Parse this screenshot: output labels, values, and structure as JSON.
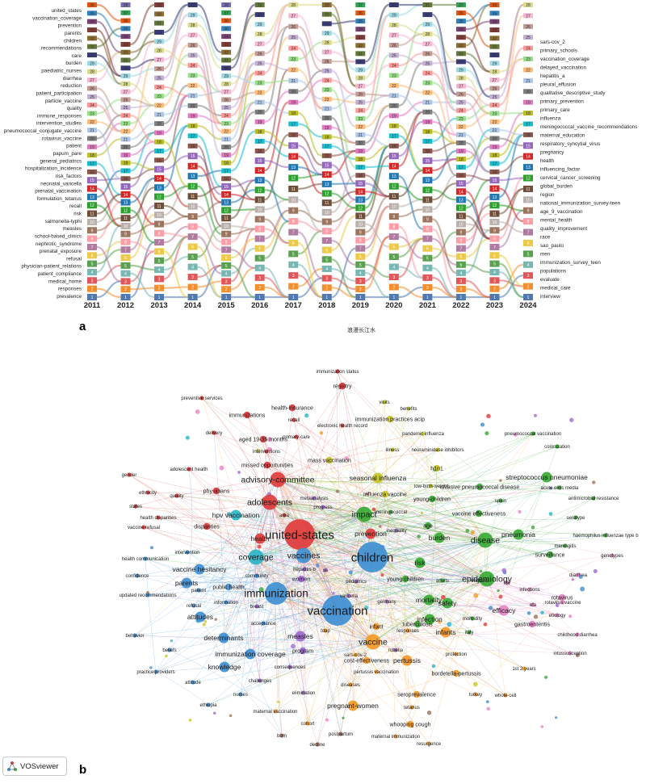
{
  "panel_a": {
    "letter": "a",
    "watermark": "浪漫长江水",
    "years": [
      "2011",
      "2012",
      "2013",
      "2014",
      "2015",
      "2016",
      "2017",
      "2018",
      "2019",
      "2020",
      "2021",
      "2022",
      "2023",
      "2024"
    ],
    "left_terms": [
      "united_states",
      "vaccination_coverage",
      "prevention",
      "parents",
      "children",
      "recommendations",
      "care",
      "burden",
      "paediatric_nurses",
      "diarrhea",
      "reduction",
      "patient_participation",
      "particle_vaccine",
      "quality",
      "immune_responses",
      "intervention_studies",
      "pneumococcal_conjugate_vaccine",
      "rotavirus_vaccine",
      "patient",
      "papum_pare",
      "general_pediatrics",
      "hospitalization_incidence",
      "risk_factors",
      "neonatal_varicella",
      "prenatal_vaccination",
      "formulation_tetanus",
      "recall",
      "risk",
      "salmonella-typhi",
      "measles",
      "school-based_clinics",
      "nephrotic_syndrome",
      "prenatal_exposure",
      "refusal",
      "physician-patient_relations",
      "patient_compliance",
      "medical_home",
      "responses",
      "prevalence"
    ],
    "right_terms": [
      "sars-cov_2",
      "primary_schools",
      "vaccination_coverage",
      "delayed_vaccination",
      "hepatitis_a",
      "pleural_effusion",
      "qualitative_descriptive_study",
      "primary_prevention",
      "primary_care",
      "influenza",
      "meningococcal_vaccine_recommendations",
      "maternal_education",
      "respiratory_syncytial_virus",
      "pregnancy",
      "health",
      "influencing_factor",
      "cervical_cancer_screening",
      "global_burden",
      "region",
      "national_immunization_survey-teen",
      "age_9_vaccination",
      "mental_health",
      "quality_improvement",
      "race",
      "sao_paulo",
      "men",
      "immunization_survey_teen",
      "populations",
      "evaluate",
      "medical_care",
      "interview"
    ],
    "rank_max_by_year": [
      36,
      38,
      33,
      30,
      38,
      31,
      28,
      32,
      37,
      30,
      31,
      37,
      36,
      28
    ],
    "rank_palette": [
      "#4f79b0",
      "#f28e2b",
      "#e15759",
      "#76b7b2",
      "#59a14f",
      "#edc948",
      "#b07aa1",
      "#ff9da7",
      "#9c755f",
      "#bab0ac",
      "#6f4e37",
      "#2ca02c",
      "#1f77b4",
      "#d62728",
      "#9467bd",
      "#8c564b",
      "#17becf",
      "#bcbd22",
      "#e377c2",
      "#7f7f7f",
      "#aec7e8",
      "#ffbb78",
      "#98df8a",
      "#ff9896",
      "#c5b0d5",
      "#c49c94",
      "#f7b6d2",
      "#dbdb8d",
      "#9edae5",
      "#393b79",
      "#637939",
      "#8c6d31",
      "#843c39",
      "#7b4173",
      "#3182bd",
      "#e6550d",
      "#31a354",
      "#756bb1"
    ]
  },
  "panel_b": {
    "letter": "b",
    "logo_text": "VOSviewer",
    "clusters": {
      "red": "#e03c3c",
      "green": "#3aaa35",
      "blue": "#3f8fd2",
      "yellow": "#c8c828",
      "purple": "#a26bd1",
      "cyan": "#2bb5c7",
      "orange": "#f39a28",
      "pink": "#e884c4",
      "brown": "#a0705a"
    },
    "nodes": [
      {
        "label": "immunization status",
        "c": "red",
        "w": 1
      },
      {
        "label": "registry",
        "c": "red",
        "w": 2
      },
      {
        "label": "visits",
        "c": "yellow",
        "w": 1
      },
      {
        "label": "benefits",
        "c": "yellow",
        "w": 1
      },
      {
        "label": "preventive services",
        "c": "red",
        "w": 1
      },
      {
        "label": "health-insurance",
        "c": "red",
        "w": 2
      },
      {
        "label": "immunization practices acip",
        "c": "yellow",
        "w": 2
      },
      {
        "label": "immunizations",
        "c": "red",
        "w": 2
      },
      {
        "label": "recall",
        "c": "red",
        "w": 1
      },
      {
        "label": "electronic health record",
        "c": "red",
        "w": 1
      },
      {
        "label": "delivery",
        "c": "red",
        "w": 1
      },
      {
        "label": "pandemic influenza",
        "c": "yellow",
        "w": 1
      },
      {
        "label": "pneumococcal vaccination",
        "c": "green",
        "w": 1
      },
      {
        "label": "aged 19-35 months",
        "c": "red",
        "w": 2
      },
      {
        "label": "primary-care",
        "c": "red",
        "w": 1
      },
      {
        "label": "illness",
        "c": "yellow",
        "w": 1
      },
      {
        "label": "neuraminidase inhibitors",
        "c": "yellow",
        "w": 1
      },
      {
        "label": "colonization",
        "c": "green",
        "w": 1
      },
      {
        "label": "interventions",
        "c": "red",
        "w": 1
      },
      {
        "label": "adolescent health",
        "c": "red",
        "w": 1
      },
      {
        "label": "missed opportunities",
        "c": "red",
        "w": 2
      },
      {
        "label": "gender",
        "c": "red",
        "w": 1
      },
      {
        "label": "mass vaccination",
        "c": "yellow",
        "w": 2
      },
      {
        "label": "h1n1",
        "c": "yellow",
        "w": 2
      },
      {
        "label": "streptococcus pneumoniae",
        "c": "green",
        "w": 3
      },
      {
        "label": "ethnicity",
        "c": "red",
        "w": 1
      },
      {
        "label": "quality",
        "c": "red",
        "w": 1
      },
      {
        "label": "physicians",
        "c": "red",
        "w": 2
      },
      {
        "label": "advisory-committee",
        "c": "red",
        "w": 4
      },
      {
        "label": "seasonal influenza",
        "c": "yellow",
        "w": 3
      },
      {
        "label": "invasive pneumococcal disease",
        "c": "green",
        "w": 2
      },
      {
        "label": "acute otitis media",
        "c": "green",
        "w": 1
      },
      {
        "label": "states",
        "c": "red",
        "w": 1
      },
      {
        "label": "health disparities",
        "c": "red",
        "w": 1
      },
      {
        "label": "low-birth-weight",
        "c": "yellow",
        "w": 1
      },
      {
        "label": "antimicrobial resistance",
        "c": "green",
        "w": 1
      },
      {
        "label": "vaccine refusal",
        "c": "red",
        "w": 1
      },
      {
        "label": "disparities",
        "c": "red",
        "w": 2
      },
      {
        "label": "progress",
        "c": "purple",
        "w": 1
      },
      {
        "label": "influenza vaccine",
        "c": "yellow",
        "w": 2
      },
      {
        "label": "young-children",
        "c": "green",
        "w": 2
      },
      {
        "label": "spain",
        "c": "green",
        "w": 1
      },
      {
        "label": "adolescents",
        "c": "red",
        "w": 4
      },
      {
        "label": "metaanalysis",
        "c": "purple",
        "w": 1
      },
      {
        "label": "hpv vaccination",
        "c": "cyan",
        "w": 3
      },
      {
        "label": "area",
        "c": "red",
        "w": 1
      },
      {
        "label": "meningococcal",
        "c": "green",
        "w": 1
      },
      {
        "label": "serotype",
        "c": "green",
        "w": 1
      },
      {
        "label": "impact",
        "c": "green",
        "w": 4
      },
      {
        "label": "vaccine effectiveness",
        "c": "green",
        "w": 2
      },
      {
        "label": "intervention",
        "c": "blue",
        "w": 1
      },
      {
        "label": "prevention",
        "c": "red",
        "w": 3
      },
      {
        "label": "age",
        "c": "green",
        "w": 2
      },
      {
        "label": "haemophilus influenzae type b",
        "c": "green",
        "w": 1
      },
      {
        "label": "inequality",
        "c": "purple",
        "w": 1
      },
      {
        "label": "pneumonia",
        "c": "green",
        "w": 3
      },
      {
        "label": "health",
        "c": "red",
        "w": 3
      },
      {
        "label": "united-states",
        "c": "red",
        "w": 6
      },
      {
        "label": "disease",
        "c": "green",
        "w": 4
      },
      {
        "label": "meningitis",
        "c": "green",
        "w": 1
      },
      {
        "label": "vaccine hesitancy",
        "c": "blue",
        "w": 3
      },
      {
        "label": "burden",
        "c": "green",
        "w": 3
      },
      {
        "label": "children",
        "c": "blue",
        "w": 6
      },
      {
        "label": "genotypes",
        "c": "pink",
        "w": 1
      },
      {
        "label": "health communication",
        "c": "blue",
        "w": 1
      },
      {
        "label": "vaccines",
        "c": "blue",
        "w": 4
      },
      {
        "label": "risk",
        "c": "green",
        "w": 3
      },
      {
        "label": "coverage",
        "c": "cyan",
        "w": 4
      },
      {
        "label": "surveillance",
        "c": "green",
        "w": 2
      },
      {
        "label": "patient",
        "c": "blue",
        "w": 1
      },
      {
        "label": "community",
        "c": "blue",
        "w": 1
      },
      {
        "label": "hepatitis-b",
        "c": "purple",
        "w": 1
      },
      {
        "label": "adults",
        "c": "green",
        "w": 1
      },
      {
        "label": "england",
        "c": "green",
        "w": 1
      },
      {
        "label": "rsv",
        "c": "pink",
        "w": 1
      },
      {
        "label": "infections",
        "c": "pink",
        "w": 1
      },
      {
        "label": "diarrhea",
        "c": "pink",
        "w": 1
      },
      {
        "label": "confidence",
        "c": "blue",
        "w": 1
      },
      {
        "label": "women",
        "c": "purple",
        "w": 2
      },
      {
        "label": "us",
        "c": "purple",
        "w": 1
      },
      {
        "label": "young children",
        "c": "green",
        "w": 2
      },
      {
        "label": "epidemiology",
        "c": "green",
        "w": 4
      },
      {
        "label": "parents",
        "c": "blue",
        "w": 3
      },
      {
        "label": "public health",
        "c": "blue",
        "w": 2
      },
      {
        "label": "germany",
        "c": "purple",
        "w": 1
      },
      {
        "label": "mortality",
        "c": "green",
        "w": 3
      },
      {
        "label": "rotavirus",
        "c": "pink",
        "w": 2
      },
      {
        "label": "rotavirus vaccine",
        "c": "pink",
        "w": 1
      },
      {
        "label": "updated recommendations",
        "c": "blue",
        "w": 1
      },
      {
        "label": "pediatrics",
        "c": "purple",
        "w": 1
      },
      {
        "label": "immunization",
        "c": "blue",
        "w": 5
      },
      {
        "label": "information",
        "c": "blue",
        "w": 1
      },
      {
        "label": "tuberculosis",
        "c": "green",
        "w": 2
      },
      {
        "label": "safety",
        "c": "green",
        "w": 3
      },
      {
        "label": "morbidity",
        "c": "green",
        "w": 1
      },
      {
        "label": "efa",
        "c": "pink",
        "w": 1
      },
      {
        "label": "refusal",
        "c": "blue",
        "w": 1
      },
      {
        "label": "breast",
        "c": "purple",
        "w": 1
      },
      {
        "label": "varicella",
        "c": "purple",
        "w": 1
      },
      {
        "label": "efficacy",
        "c": "pink",
        "w": 3
      },
      {
        "label": "etiology",
        "c": "pink",
        "w": 1
      },
      {
        "label": "attitudes",
        "c": "blue",
        "w": 3
      },
      {
        "label": "acceptance",
        "c": "blue",
        "w": 1
      },
      {
        "label": "vaccination",
        "c": "blue",
        "w": 6
      },
      {
        "label": "infection",
        "c": "green",
        "w": 3
      },
      {
        "label": "gastroenteritis",
        "c": "pink",
        "w": 2
      },
      {
        "label": "tdap",
        "c": "orange",
        "w": 1
      },
      {
        "label": "infant",
        "c": "orange",
        "w": 2
      },
      {
        "label": "responses",
        "c": "orange",
        "w": 1
      },
      {
        "label": "infants",
        "c": "orange",
        "w": 3
      },
      {
        "label": "italy",
        "c": "green",
        "w": 1
      },
      {
        "label": "childhood diarrhea",
        "c": "pink",
        "w": 1
      },
      {
        "label": "behavior",
        "c": "blue",
        "w": 1
      },
      {
        "label": "determinants",
        "c": "blue",
        "w": 3
      },
      {
        "label": "measles",
        "c": "purple",
        "w": 3
      },
      {
        "label": "vaccine",
        "c": "orange",
        "w": 4
      },
      {
        "label": "beliefs",
        "c": "blue",
        "w": 1
      },
      {
        "label": "immunization coverage",
        "c": "blue",
        "w": 3
      },
      {
        "label": "program",
        "c": "purple",
        "w": 2
      },
      {
        "label": "sars-cov-2",
        "c": "orange",
        "w": 1
      },
      {
        "label": "rubella",
        "c": "purple",
        "w": 1
      },
      {
        "label": "protection",
        "c": "orange",
        "w": 1
      },
      {
        "label": "intussusception",
        "c": "pink",
        "w": 1
      },
      {
        "label": "practice providers",
        "c": "blue",
        "w": 1
      },
      {
        "label": "knowledge",
        "c": "blue",
        "w": 3
      },
      {
        "label": "consequences",
        "c": "purple",
        "w": 1
      },
      {
        "label": "cost-effectiveness",
        "c": "orange",
        "w": 2
      },
      {
        "label": "pertussis vaccination",
        "c": "orange",
        "w": 1
      },
      {
        "label": "bordetella-pertussis",
        "c": "orange",
        "w": 2
      },
      {
        "label": "1st 2 years",
        "c": "orange",
        "w": 1
      },
      {
        "label": "attitude",
        "c": "blue",
        "w": 1
      },
      {
        "label": "challenges",
        "c": "purple",
        "w": 1
      },
      {
        "label": "diseases",
        "c": "orange",
        "w": 1
      },
      {
        "label": "pertussis",
        "c": "orange",
        "w": 3
      },
      {
        "label": "elimination",
        "c": "purple",
        "w": 1
      },
      {
        "label": "seroprevalence",
        "c": "orange",
        "w": 2
      },
      {
        "label": "turkey",
        "c": "orange",
        "w": 1
      },
      {
        "label": "whole-cell",
        "c": "orange",
        "w": 1
      },
      {
        "label": "nurses",
        "c": "blue",
        "w": 1
      },
      {
        "label": "ethiopia",
        "c": "blue",
        "w": 1
      },
      {
        "label": "pregnant-women",
        "c": "orange",
        "w": 3
      },
      {
        "label": "tetanus",
        "c": "orange",
        "w": 1
      },
      {
        "label": "maternal vaccination",
        "c": "orange",
        "w": 1
      },
      {
        "label": "whooping cough",
        "c": "orange",
        "w": 2
      },
      {
        "label": "cohort",
        "c": "orange",
        "w": 1
      },
      {
        "label": "maternal immunization",
        "c": "orange",
        "w": 1
      },
      {
        "label": "born",
        "c": "brown",
        "w": 1
      },
      {
        "label": "postpartum",
        "c": "brown",
        "w": 1
      },
      {
        "label": "resurgence",
        "c": "orange",
        "w": 1
      },
      {
        "label": "decline",
        "c": "brown",
        "w": 1
      }
    ]
  }
}
